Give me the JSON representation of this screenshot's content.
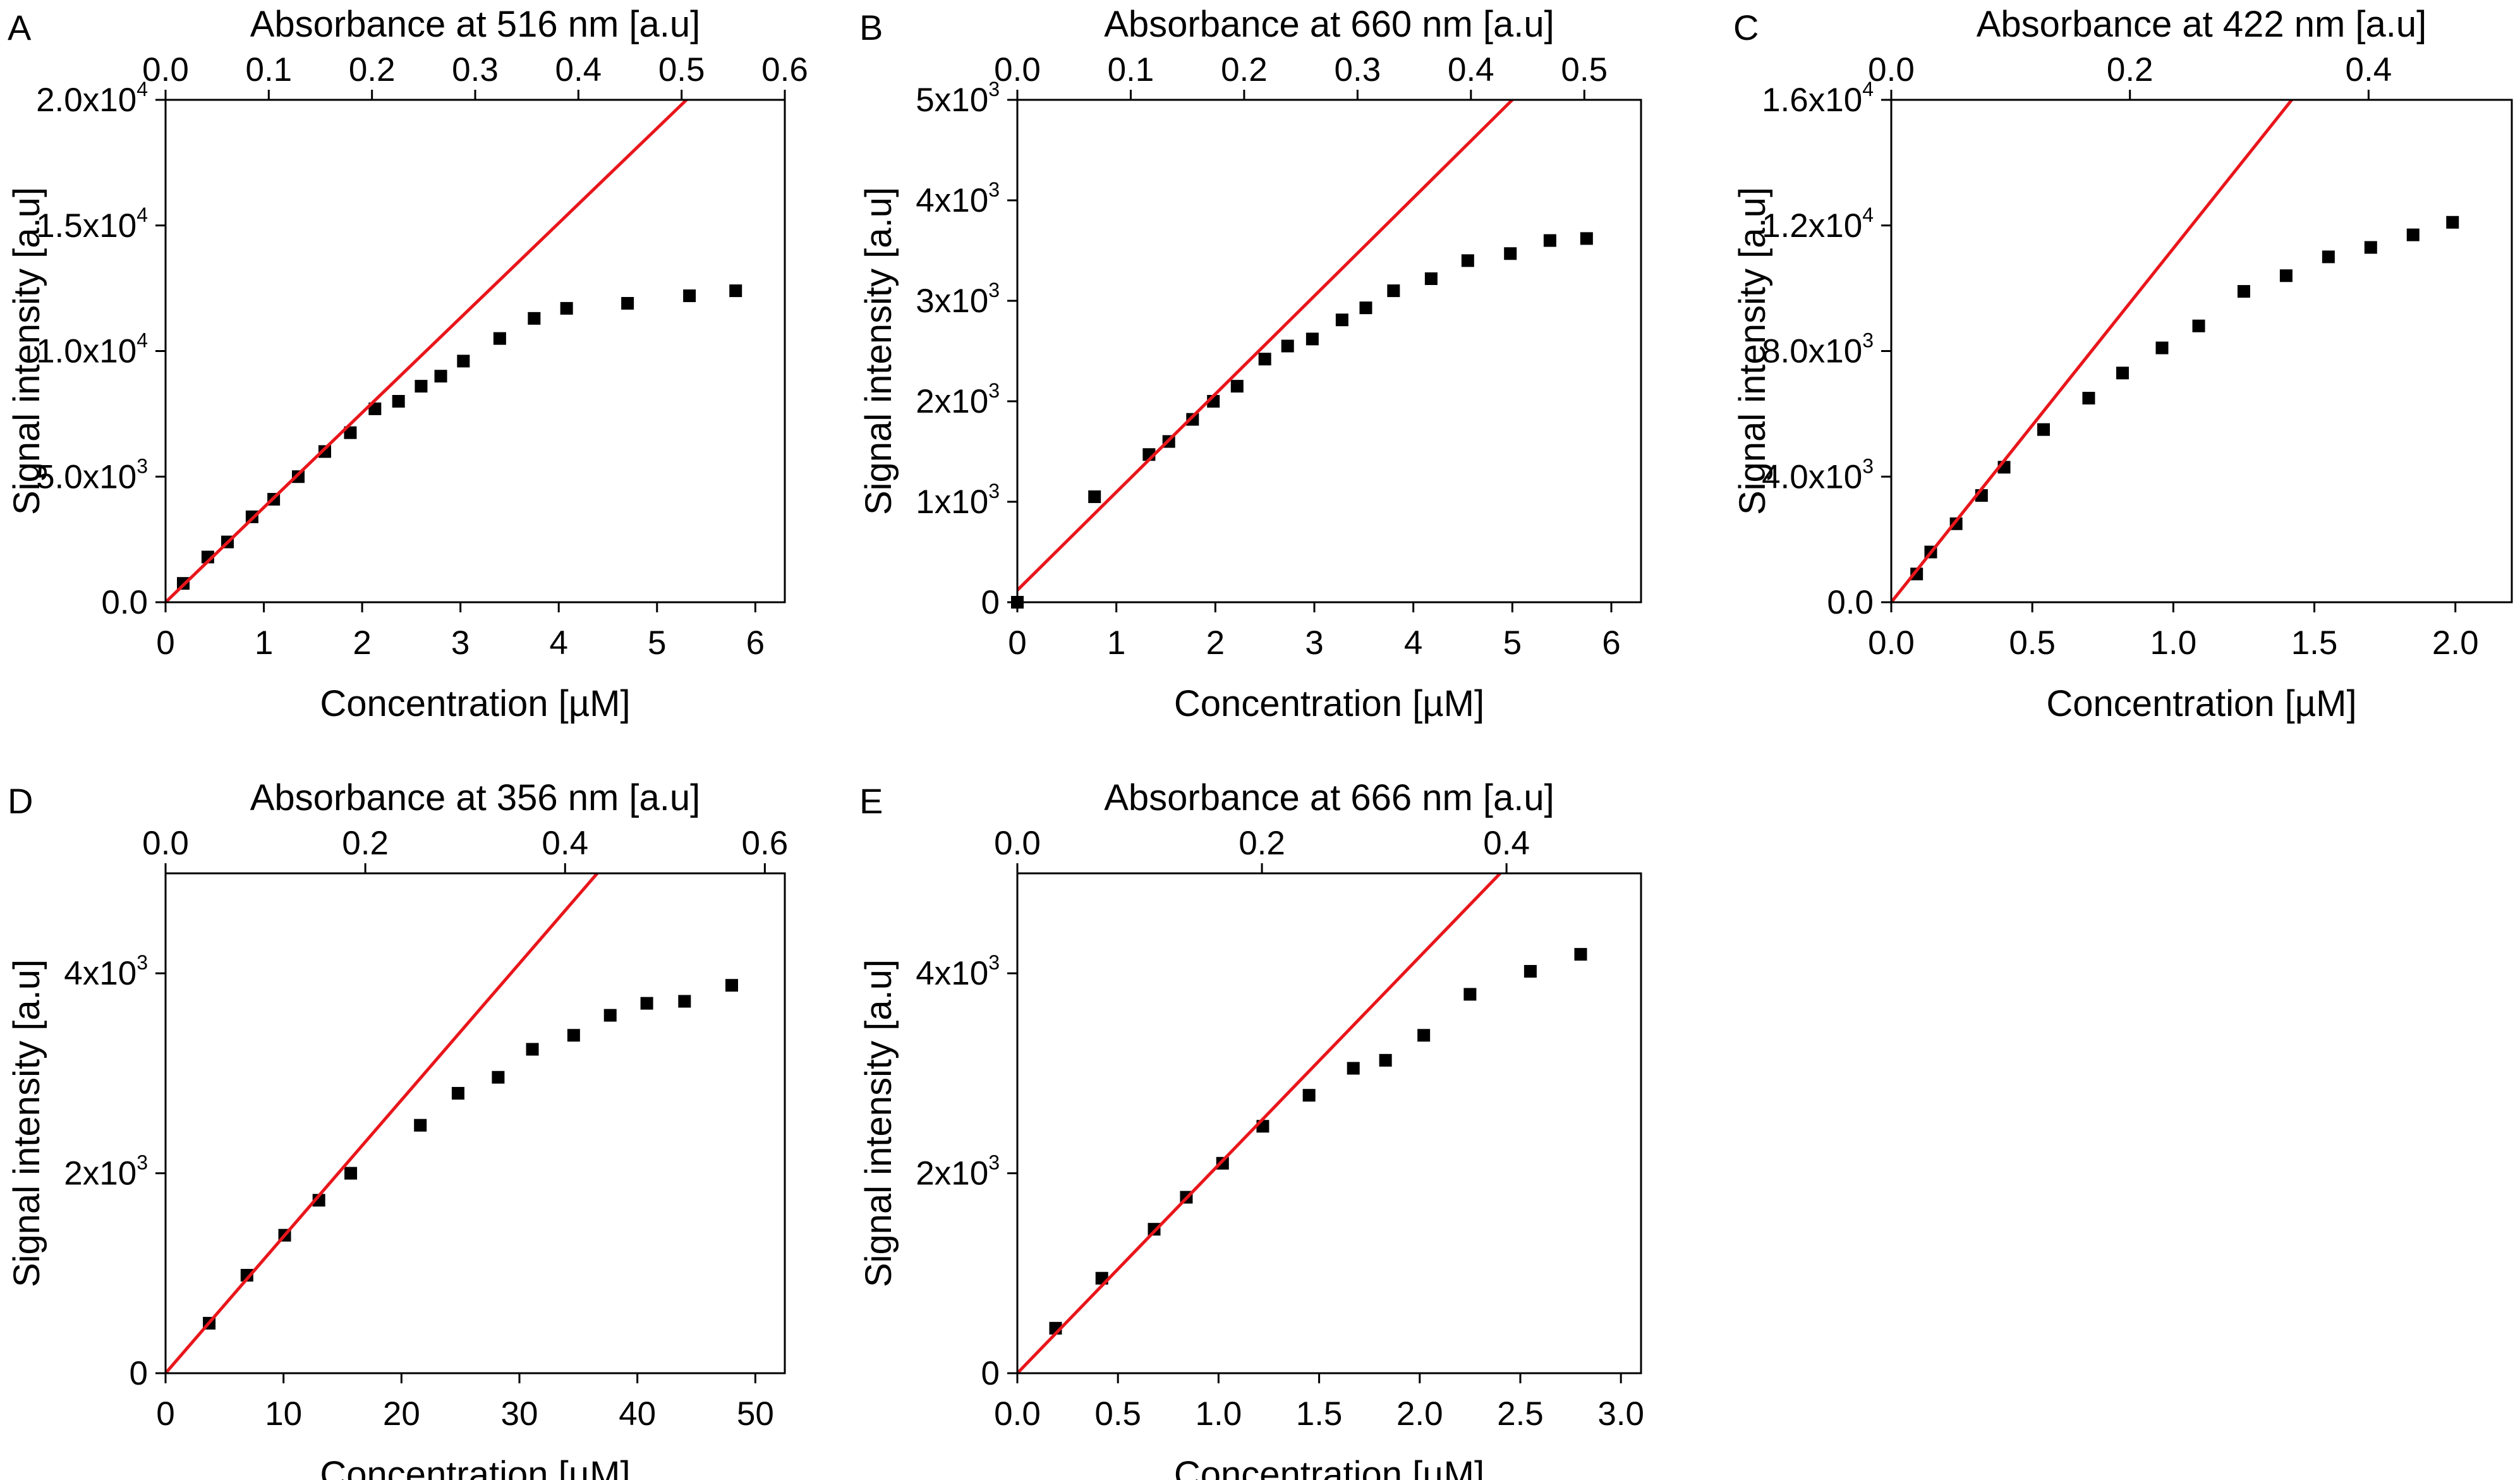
{
  "chart_data": [
    {
      "panel": "A",
      "type": "scatter",
      "top_axis_label": "Absorbance at 516 nm [a.u]",
      "xlabel": "Concentration [µM]",
      "ylabel": "Signal intensity [a.u]",
      "xlim": [
        0,
        6.3
      ],
      "ylim": [
        0,
        20000
      ],
      "top_lim": [
        0,
        0.6
      ],
      "x_ticks": [
        0,
        1,
        2,
        3,
        4,
        5,
        6
      ],
      "x_tick_labels": [
        "0",
        "1",
        "2",
        "3",
        "4",
        "5",
        "6"
      ],
      "y_ticks": [
        0,
        5000,
        10000,
        15000,
        20000
      ],
      "y_tick_labels": [
        [
          "0.0",
          ""
        ],
        [
          "5.0x10",
          "3"
        ],
        [
          "1.0x10",
          "4"
        ],
        [
          "1.5x10",
          "4"
        ],
        [
          "2.0x10",
          "4"
        ]
      ],
      "top_ticks": [
        0,
        0.1,
        0.2,
        0.3,
        0.4,
        0.5,
        0.6
      ],
      "top_tick_labels": [
        "0.0",
        "0.1",
        "0.2",
        "0.3",
        "0.4",
        "0.5",
        "0.6"
      ],
      "grid": false,
      "series": [
        {
          "type": "scatter",
          "color": "#000000",
          "x": [
            0.18,
            0.43,
            0.63,
            0.88,
            1.1,
            1.35,
            1.62,
            1.88,
            2.13,
            2.37,
            2.6,
            2.8,
            3.03,
            3.4,
            3.75,
            4.08,
            4.7,
            5.33,
            5.8
          ],
          "y": [
            750,
            1800,
            2400,
            3400,
            4100,
            5000,
            6000,
            6750,
            7700,
            8000,
            8600,
            9000,
            9600,
            10500,
            11300,
            11700,
            11900,
            12200,
            12400
          ]
        },
        {
          "type": "fit-line",
          "color": "#e8161b",
          "x": [
            0,
            5.3
          ],
          "y": [
            0,
            20000
          ]
        }
      ]
    },
    {
      "panel": "B",
      "type": "scatter",
      "top_axis_label": "Absorbance at 660 nm [a.u]",
      "xlabel": "Concentration [µM]",
      "ylabel": "Signal intensity [a.u]",
      "xlim": [
        0,
        6.3
      ],
      "ylim": [
        0,
        5000
      ],
      "top_lim": [
        0,
        0.55
      ],
      "x_ticks": [
        0,
        1,
        2,
        3,
        4,
        5,
        6
      ],
      "x_tick_labels": [
        "0",
        "1",
        "2",
        "3",
        "4",
        "5",
        "6"
      ],
      "y_ticks": [
        0,
        1000,
        2000,
        3000,
        4000,
        5000
      ],
      "y_tick_labels": [
        [
          "0",
          ""
        ],
        [
          "1x10",
          "3"
        ],
        [
          "2x10",
          "3"
        ],
        [
          "3x10",
          "3"
        ],
        [
          "4x10",
          "3"
        ],
        [
          "5x10",
          "3"
        ]
      ],
      "top_ticks": [
        0,
        0.1,
        0.2,
        0.3,
        0.4,
        0.5
      ],
      "top_tick_labels": [
        "0.0",
        "0.1",
        "0.2",
        "0.3",
        "0.4",
        "0.5"
      ],
      "grid": false,
      "series": [
        {
          "type": "scatter",
          "color": "#000000",
          "x": [
            0,
            0.78,
            1.33,
            1.53,
            1.77,
            1.98,
            2.22,
            2.5,
            2.73,
            2.98,
            3.28,
            3.52,
            3.8,
            4.18,
            4.55,
            4.98,
            5.38,
            5.75
          ],
          "y": [
            0,
            1050,
            1470,
            1600,
            1820,
            2000,
            2150,
            2420,
            2550,
            2620,
            2810,
            2930,
            3100,
            3220,
            3400,
            3470,
            3600,
            3620
          ]
        },
        {
          "type": "fit-line",
          "color": "#e8161b",
          "x": [
            0,
            5.0
          ],
          "y": [
            120,
            5000
          ]
        }
      ]
    },
    {
      "panel": "C",
      "type": "scatter",
      "top_axis_label": "Absorbance at 422 nm [a.u]",
      "xlabel": "Concentration [µM]",
      "ylabel": "Signal intensity [a.u]",
      "xlim": [
        0,
        2.2
      ],
      "ylim": [
        0,
        16000
      ],
      "top_lim": [
        0,
        0.52
      ],
      "x_ticks": [
        0,
        0.5,
        1,
        1.5,
        2
      ],
      "x_tick_labels": [
        "0.0",
        "0.5",
        "1.0",
        "1.5",
        "2.0"
      ],
      "y_ticks": [
        0,
        4000,
        8000,
        12000,
        16000
      ],
      "y_tick_labels": [
        [
          "0.0",
          ""
        ],
        [
          "4.0x10",
          "3"
        ],
        [
          "8.0x10",
          "3"
        ],
        [
          "1.2x10",
          "4"
        ],
        [
          "1.6x10",
          "4"
        ]
      ],
      "top_ticks": [
        0,
        0.2,
        0.4
      ],
      "top_tick_labels": [
        "0.0",
        "0.2",
        "0.4"
      ],
      "grid": false,
      "series": [
        {
          "type": "scatter",
          "color": "#000000",
          "x": [
            0.09,
            0.14,
            0.23,
            0.32,
            0.4,
            0.54,
            0.7,
            0.82,
            0.96,
            1.09,
            1.25,
            1.4,
            1.55,
            1.7,
            1.85,
            1.99
          ],
          "y": [
            900,
            1600,
            2500,
            3400,
            4300,
            5500,
            6500,
            7300,
            8100,
            8800,
            9900,
            10400,
            11000,
            11300,
            11700,
            12100
          ]
        },
        {
          "type": "fit-line",
          "color": "#e8161b",
          "x": [
            0,
            1.42
          ],
          "y": [
            0,
            16000
          ]
        }
      ]
    },
    {
      "panel": "D",
      "type": "scatter",
      "top_axis_label": "Absorbance at 356 nm [a.u]",
      "xlabel": "Concentration [µM]",
      "ylabel": "Signal intensity [a.u]",
      "xlim": [
        0,
        52.5
      ],
      "ylim": [
        0,
        5000
      ],
      "top_lim": [
        0,
        0.62
      ],
      "x_ticks": [
        0,
        10,
        20,
        30,
        40,
        50
      ],
      "x_tick_labels": [
        "0",
        "10",
        "20",
        "30",
        "40",
        "50"
      ],
      "y_ticks": [
        0,
        2000,
        4000
      ],
      "y_tick_labels": [
        [
          "0",
          ""
        ],
        [
          "2x10",
          "3"
        ],
        [
          "4x10",
          "3"
        ]
      ],
      "top_ticks": [
        0,
        0.2,
        0.4,
        0.6
      ],
      "top_tick_labels": [
        "0.0",
        "0.2",
        "0.4",
        "0.6"
      ],
      "grid": false,
      "series": [
        {
          "type": "scatter",
          "color": "#000000",
          "x": [
            3.7,
            6.9,
            10.1,
            13,
            15.7,
            21.6,
            24.8,
            28.2,
            31.1,
            34.6,
            37.7,
            40.8,
            44,
            48
          ],
          "y": [
            500,
            980,
            1380,
            1730,
            2000,
            2480,
            2800,
            2960,
            3240,
            3380,
            3580,
            3700,
            3720,
            3880
          ]
        },
        {
          "type": "fit-line",
          "color": "#e8161b",
          "x": [
            0,
            36.6
          ],
          "y": [
            0,
            5000
          ]
        }
      ]
    },
    {
      "panel": "E",
      "type": "scatter",
      "top_axis_label": "Absorbance at 666 nm [a.u]",
      "xlabel": "Concentration [µM]",
      "ylabel": "Signal intensity [a.u]",
      "xlim": [
        0,
        3.1
      ],
      "ylim": [
        0,
        5000
      ],
      "top_lim": [
        0,
        0.51
      ],
      "x_ticks": [
        0,
        0.5,
        1,
        1.5,
        2,
        2.5,
        3
      ],
      "x_tick_labels": [
        "0.0",
        "0.5",
        "1.0",
        "1.5",
        "2.0",
        "2.5",
        "3.0"
      ],
      "y_ticks": [
        0,
        2000,
        4000
      ],
      "y_tick_labels": [
        [
          "0",
          ""
        ],
        [
          "2x10",
          "3"
        ],
        [
          "4x10",
          "3"
        ]
      ],
      "top_ticks": [
        0,
        0.2,
        0.4
      ],
      "top_tick_labels": [
        "0.0",
        "0.2",
        "0.4"
      ],
      "grid": false,
      "series": [
        {
          "type": "scatter",
          "color": "#000000",
          "x": [
            0.19,
            0.42,
            0.68,
            0.84,
            1.02,
            1.22,
            1.45,
            1.67,
            1.83,
            2.02,
            2.25,
            2.55,
            2.8
          ],
          "y": [
            450,
            950,
            1440,
            1760,
            2100,
            2470,
            2780,
            3050,
            3130,
            3380,
            3790,
            4020,
            4190
          ]
        },
        {
          "type": "fit-line",
          "color": "#e8161b",
          "x": [
            0,
            2.4
          ],
          "y": [
            0,
            5000
          ]
        }
      ]
    }
  ]
}
